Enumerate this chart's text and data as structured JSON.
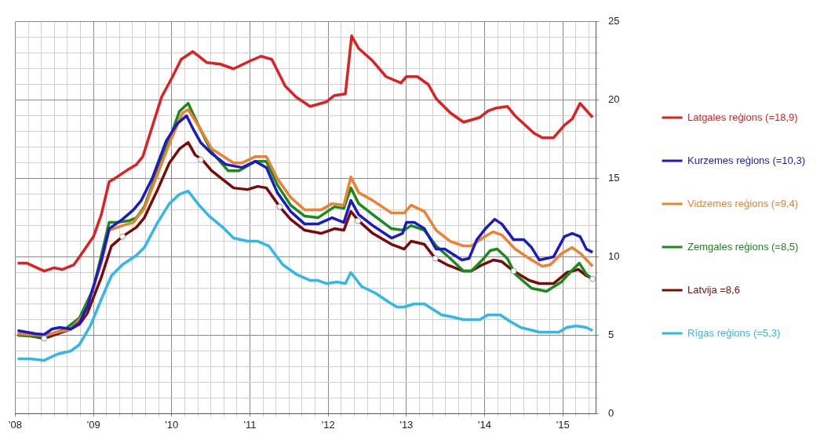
{
  "chart_data": {
    "type": "line",
    "legend": "right",
    "grid": true,
    "xlim": [
      2008,
      2015.42
    ],
    "ylim": [
      0,
      25
    ],
    "xticks": [
      {
        "value": 2008,
        "label": "'08"
      },
      {
        "value": 2008.1667,
        "label": null
      },
      {
        "value": 2008.3333,
        "label": null
      },
      {
        "value": 2008.5,
        "label": null
      },
      {
        "value": 2008.6667,
        "label": null
      },
      {
        "value": 2008.8333,
        "label": null
      },
      {
        "value": 2009,
        "label": "'09"
      },
      {
        "value": 2009.1667,
        "label": null
      },
      {
        "value": 2009.3333,
        "label": null
      },
      {
        "value": 2009.5,
        "label": null
      },
      {
        "value": 2009.6667,
        "label": null
      },
      {
        "value": 2009.8333,
        "label": null
      },
      {
        "value": 2010,
        "label": "'10"
      },
      {
        "value": 2010.1667,
        "label": null
      },
      {
        "value": 2010.3333,
        "label": null
      },
      {
        "value": 2010.5,
        "label": null
      },
      {
        "value": 2010.6667,
        "label": null
      },
      {
        "value": 2010.8333,
        "label": null
      },
      {
        "value": 2011,
        "label": "'11"
      },
      {
        "value": 2011.1667,
        "label": null
      },
      {
        "value": 2011.3333,
        "label": null
      },
      {
        "value": 2011.5,
        "label": null
      },
      {
        "value": 2011.6667,
        "label": null
      },
      {
        "value": 2011.8333,
        "label": null
      },
      {
        "value": 2012,
        "label": "'12"
      },
      {
        "value": 2012.1667,
        "label": null
      },
      {
        "value": 2012.3333,
        "label": null
      },
      {
        "value": 2012.5,
        "label": null
      },
      {
        "value": 2012.6667,
        "label": null
      },
      {
        "value": 2012.8333,
        "label": null
      },
      {
        "value": 2013,
        "label": "'13"
      },
      {
        "value": 2013.1667,
        "label": null
      },
      {
        "value": 2013.3333,
        "label": null
      },
      {
        "value": 2013.5,
        "label": null
      },
      {
        "value": 2013.6667,
        "label": null
      },
      {
        "value": 2013.8333,
        "label": null
      },
      {
        "value": 2014,
        "label": "'14"
      },
      {
        "value": 2014.1667,
        "label": null
      },
      {
        "value": 2014.3333,
        "label": null
      },
      {
        "value": 2014.5,
        "label": null
      },
      {
        "value": 2014.6667,
        "label": null
      },
      {
        "value": 2014.8333,
        "label": null
      },
      {
        "value": 2015,
        "label": "'15"
      },
      {
        "value": 2015.1667,
        "label": null
      },
      {
        "value": 2015.3333,
        "label": null
      }
    ],
    "yticks": [
      0,
      {
        "value": 1,
        "label": null
      },
      {
        "value": 2,
        "label": null
      },
      {
        "value": 3,
        "label": null
      },
      {
        "value": 4,
        "label": null
      },
      5,
      {
        "value": 6,
        "label": null
      },
      {
        "value": 7,
        "label": null
      },
      {
        "value": 8,
        "label": null
      },
      {
        "value": 9,
        "label": null
      },
      10,
      {
        "value": 11,
        "label": null
      },
      {
        "value": 12,
        "label": null
      },
      {
        "value": 13,
        "label": null
      },
      {
        "value": 14,
        "label": null
      },
      15,
      {
        "value": 16,
        "label": null
      },
      {
        "value": 17,
        "label": null
      },
      {
        "value": 18,
        "label": null
      },
      {
        "value": 19,
        "label": null
      },
      20,
      {
        "value": 21,
        "label": null
      },
      {
        "value": 22,
        "label": null
      },
      {
        "value": 23,
        "label": null
      },
      {
        "value": 24,
        "label": null
      },
      25
    ],
    "series": [
      {
        "name": "Latgales reģions (=18,9)",
        "color": "#e02020",
        "x": [
          2008.03,
          2008.15,
          2008.37,
          2008.49,
          2008.6,
          2008.75,
          2008.89,
          2009.0,
          2009.1,
          2009.2,
          2009.3,
          2009.45,
          2009.55,
          2009.63,
          2009.75,
          2009.87,
          2010.0,
          2010.12,
          2010.27,
          2010.45,
          2010.62,
          2010.79,
          2011.0,
          2011.14,
          2011.28,
          2011.45,
          2011.59,
          2011.77,
          2011.98,
          2012.08,
          2012.22,
          2012.3,
          2012.39,
          2012.57,
          2012.74,
          2012.93,
          2013.0,
          2013.14,
          2013.28,
          2013.38,
          2013.56,
          2013.73,
          2013.94,
          2014.04,
          2014.15,
          2014.29,
          2014.39,
          2014.63,
          2014.74,
          2014.88,
          2015.02,
          2015.12,
          2015.22,
          2015.38
        ],
        "values": [
          9.6,
          9.6,
          9.1,
          9.3,
          9.2,
          9.5,
          10.5,
          11.3,
          12.7,
          14.8,
          15.1,
          15.6,
          15.9,
          16.4,
          18.3,
          20.2,
          21.4,
          22.6,
          23.1,
          22.4,
          22.3,
          22.0,
          22.5,
          22.8,
          22.6,
          20.9,
          20.2,
          19.6,
          19.9,
          20.3,
          20.4,
          24.1,
          23.3,
          22.5,
          21.5,
          21.1,
          21.5,
          21.5,
          21.0,
          20.1,
          19.2,
          18.6,
          18.9,
          19.3,
          19.5,
          19.6,
          19.0,
          17.9,
          17.6,
          17.6,
          18.4,
          18.8,
          19.8,
          18.9
        ]
      },
      {
        "name": "Kurzemes reģions (=10,3)",
        "color": "#1a1ac8",
        "x": [
          2008.03,
          2008.26,
          2008.37,
          2008.47,
          2008.57,
          2008.71,
          2008.82,
          2008.92,
          2009.1,
          2009.2,
          2009.37,
          2009.51,
          2009.61,
          2009.75,
          2009.93,
          2010.07,
          2010.19,
          2010.28,
          2010.37,
          2010.51,
          2010.69,
          2010.9,
          2011.07,
          2011.21,
          2011.35,
          2011.52,
          2011.7,
          2011.87,
          2012.05,
          2012.2,
          2012.29,
          2012.39,
          2012.57,
          2012.81,
          2012.95,
          2013.0,
          2013.1,
          2013.23,
          2013.38,
          2013.49,
          2013.71,
          2013.8,
          2013.9,
          2014.01,
          2014.13,
          2014.22,
          2014.37,
          2014.5,
          2014.6,
          2014.7,
          2014.88,
          2015.02,
          2015.12,
          2015.22,
          2015.3,
          2015.38
        ],
        "values": [
          5.3,
          5.1,
          5.05,
          5.4,
          5.5,
          5.4,
          5.8,
          6.8,
          9.8,
          11.8,
          12.4,
          13.0,
          13.6,
          15.0,
          17.4,
          18.5,
          19.0,
          18.1,
          17.3,
          16.6,
          15.9,
          15.7,
          16.1,
          15.7,
          14.1,
          12.9,
          12.1,
          12.1,
          12.5,
          12.2,
          13.6,
          12.7,
          12.0,
          11.2,
          11.5,
          12.2,
          12.2,
          11.8,
          10.5,
          10.5,
          9.8,
          9.9,
          11.1,
          11.8,
          12.4,
          12.1,
          11.1,
          11.1,
          10.6,
          9.8,
          10.0,
          11.3,
          11.5,
          11.3,
          10.5,
          10.3
        ]
      },
      {
        "name": "Vidzemes reģions (=9,4)",
        "color": "#f08030",
        "x": [
          2008.03,
          2008.37,
          2008.71,
          2008.89,
          2009.1,
          2009.2,
          2009.37,
          2009.51,
          2009.65,
          2009.82,
          2010.0,
          2010.14,
          2010.21,
          2010.35,
          2010.51,
          2010.79,
          2010.9,
          2011.07,
          2011.21,
          2011.35,
          2011.52,
          2011.7,
          2011.91,
          2012.05,
          2012.2,
          2012.29,
          2012.39,
          2012.57,
          2012.81,
          2012.97,
          2013.06,
          2013.23,
          2013.38,
          2013.56,
          2013.73,
          2013.83,
          2013.97,
          2014.11,
          2014.22,
          2014.39,
          2014.6,
          2014.74,
          2014.84,
          2014.98,
          2015.12,
          2015.23,
          2015.38
        ],
        "values": [
          5.1,
          5.0,
          5.4,
          6.4,
          9.6,
          11.7,
          12.0,
          12.2,
          13.1,
          15.3,
          17.6,
          19.2,
          19.4,
          18.3,
          16.9,
          16.0,
          16.0,
          16.4,
          16.4,
          15.0,
          13.8,
          13.0,
          13.0,
          13.4,
          13.3,
          15.1,
          14.1,
          13.6,
          12.8,
          12.8,
          13.3,
          12.9,
          11.7,
          11.0,
          10.7,
          10.7,
          11.2,
          11.6,
          11.4,
          10.5,
          9.8,
          9.4,
          9.5,
          10.2,
          10.6,
          10.2,
          9.4
        ]
      },
      {
        "name": "Zemgales reģions (=8,5)",
        "color": "#1a8a1a",
        "x": [
          2008.03,
          2008.37,
          2008.64,
          2008.82,
          2009.0,
          2009.2,
          2009.3,
          2009.45,
          2009.55,
          2009.65,
          2009.82,
          2010.0,
          2010.1,
          2010.21,
          2010.35,
          2010.51,
          2010.72,
          2010.86,
          2011.07,
          2011.21,
          2011.35,
          2011.52,
          2011.7,
          2011.87,
          2012.08,
          2012.2,
          2012.29,
          2012.39,
          2012.57,
          2012.81,
          2012.97,
          2013.06,
          2013.23,
          2013.38,
          2013.56,
          2013.73,
          2013.83,
          2013.97,
          2014.07,
          2014.16,
          2014.29,
          2014.39,
          2014.6,
          2014.79,
          2014.98,
          2015.09,
          2015.21,
          2015.3,
          2015.38
        ],
        "values": [
          5.0,
          4.9,
          5.4,
          6.1,
          8.0,
          12.2,
          12.2,
          12.3,
          12.5,
          13.2,
          15.5,
          17.9,
          19.3,
          19.8,
          18.3,
          16.7,
          15.5,
          15.5,
          16.1,
          16.1,
          14.6,
          13.3,
          12.6,
          12.5,
          13.2,
          13.1,
          14.4,
          13.4,
          12.7,
          11.8,
          11.7,
          12.0,
          11.7,
          10.7,
          9.9,
          9.1,
          9.1,
          9.8,
          10.4,
          10.5,
          9.9,
          8.9,
          8.0,
          7.8,
          8.4,
          9.0,
          9.6,
          8.9,
          8.6
        ]
      },
      {
        "name": "Latvija =8,6",
        "color": "#7a0a0a",
        "x": [
          2008.03,
          2008.15,
          2008.37,
          2008.54,
          2008.71,
          2008.82,
          2008.92,
          2009.1,
          2009.23,
          2009.37,
          2009.55,
          2009.65,
          2009.82,
          2009.97,
          2010.1,
          2010.21,
          2010.3,
          2010.39,
          2010.51,
          2010.79,
          2010.97,
          2011.1,
          2011.21,
          2011.38,
          2011.52,
          2011.7,
          2011.91,
          2012.08,
          2012.2,
          2012.29,
          2012.39,
          2012.57,
          2012.81,
          2012.97,
          2013.06,
          2013.23,
          2013.37,
          2013.52,
          2013.73,
          2013.83,
          2013.97,
          2014.11,
          2014.22,
          2014.37,
          2014.57,
          2014.7,
          2014.88,
          2015.05,
          2015.2,
          2015.3,
          2015.38
        ],
        "values": [
          5.05,
          5.0,
          4.8,
          5.1,
          5.4,
          5.7,
          6.4,
          8.7,
          10.7,
          11.3,
          11.9,
          12.5,
          14.3,
          16.0,
          16.9,
          17.3,
          16.5,
          16.2,
          15.5,
          14.4,
          14.3,
          14.5,
          14.4,
          13.2,
          12.4,
          11.7,
          11.5,
          11.8,
          11.7,
          12.9,
          12.3,
          11.5,
          10.8,
          10.5,
          11.0,
          10.8,
          9.9,
          9.5,
          9.1,
          9.1,
          9.5,
          9.8,
          9.7,
          9.1,
          8.5,
          8.3,
          8.3,
          9.0,
          9.2,
          8.8,
          8.6
        ]
      },
      {
        "name": "Rīgas reģions (=5,3)",
        "color": "#30b8e8",
        "x": [
          2008.03,
          2008.19,
          2008.37,
          2008.54,
          2008.71,
          2008.82,
          2008.96,
          2009.1,
          2009.23,
          2009.37,
          2009.55,
          2009.65,
          2009.82,
          2009.97,
          2010.1,
          2010.21,
          2010.35,
          2010.48,
          2010.65,
          2010.79,
          2010.97,
          2011.1,
          2011.24,
          2011.42,
          2011.59,
          2011.77,
          2011.87,
          2011.98,
          2012.11,
          2012.22,
          2012.29,
          2012.43,
          2012.6,
          2012.78,
          2012.88,
          2012.97,
          2013.1,
          2013.23,
          2013.45,
          2013.56,
          2013.73,
          2013.94,
          2014.04,
          2014.2,
          2014.32,
          2014.46,
          2014.7,
          2014.95,
          2015.05,
          2015.17,
          2015.3,
          2015.38
        ],
        "values": [
          3.5,
          3.5,
          3.4,
          3.8,
          4.0,
          4.4,
          5.6,
          7.3,
          8.8,
          9.5,
          10.1,
          10.6,
          12.2,
          13.4,
          14.0,
          14.2,
          13.3,
          12.6,
          11.9,
          11.2,
          11.0,
          11.0,
          10.7,
          9.5,
          8.9,
          8.5,
          8.5,
          8.3,
          8.4,
          8.3,
          9.0,
          8.1,
          7.7,
          7.1,
          6.8,
          6.8,
          7.0,
          7.0,
          6.3,
          6.2,
          6.0,
          6.0,
          6.3,
          6.3,
          5.9,
          5.5,
          5.2,
          5.2,
          5.5,
          5.6,
          5.5,
          5.3
        ]
      },
      {
        "type": "scatter",
        "marker": "circle",
        "color": "#ffffff",
        "x": [
          2008.37,
          2009.37,
          2010.37,
          2011.38,
          2012.38,
          2013.37,
          2014.37,
          2015.38
        ],
        "values": [
          4.8,
          11.3,
          16.2,
          13.2,
          12.3,
          9.9,
          9.1,
          8.6
        ]
      }
    ]
  }
}
